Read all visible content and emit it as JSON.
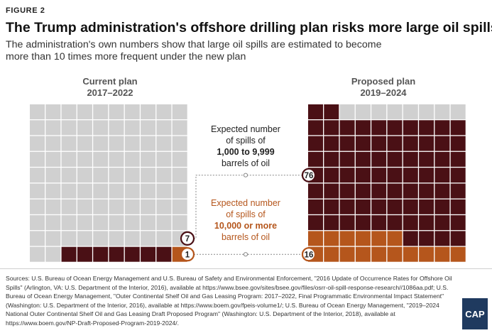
{
  "figure_label": "FIGURE 2",
  "title": "The Trump administration's offshore drilling plan risks more large oil spills",
  "subtitle": "The administration's own numbers show that large oil spills are estimated to become more than 10 times more frequent under the new plan",
  "colors": {
    "medium_spill": "#4a1015",
    "large_spill": "#b5561c",
    "empty": "#d0d0d0",
    "label_medium": "#222222",
    "label_large": "#b5561c"
  },
  "chart_data": {
    "type": "waffle",
    "cells_per_grid": 100,
    "grid_columns": 10,
    "grid_rows": 10,
    "plans": [
      {
        "line1": "Current plan",
        "line2": "2017–2022",
        "medium_spills": 7,
        "large_spills": 1
      },
      {
        "line1": "Proposed plan",
        "line2": "2019–2024",
        "medium_spills": 76,
        "large_spills": 16
      }
    ],
    "categories": [
      {
        "key": "medium",
        "label_lines": [
          "Expected number",
          "of spills of",
          "1,000 to 9,999",
          "barrels of oil"
        ],
        "bold_line": 2
      },
      {
        "key": "large",
        "label_lines": [
          "Expected number",
          "of spills of",
          "10,000 or more",
          "barrels of oil"
        ],
        "bold_line": 2
      }
    ]
  },
  "sources": "Sources: U.S. Bureau of Ocean Energy Management and U.S. Bureau of Safety and Environmental Enforcement, \"2016 Update of Occurrence Rates for Offshore Oil Spills\" (Arlington, VA: U.S. Department of the Interior, 2016), available at https://www.bsee.gov/sites/bsee.gov/files/osrr-oil-spill-response-research//1086aa.pdf; U.S. Bureau of Ocean Energy Management, \"Outer Continental Shelf Oil and Gas Leasing Program: 2017–2022, Final Programmatic Environmental Impact Statement\" (Washington: U.S. Department of the Interior, 2016), available at https://www.boem.gov/fpeis-volume1/; U.S. Bureau of Ocean Energy Management, \"2019–2024 National Outer Continental Shelf Oil and Gas Leasing Draft Proposed Program\" (Washington: U.S. Department of the Interior, 2018), available at https://www.boem.gov/NP-Draft-Proposed-Program-2019-2024/.",
  "logo_text": "CAP"
}
